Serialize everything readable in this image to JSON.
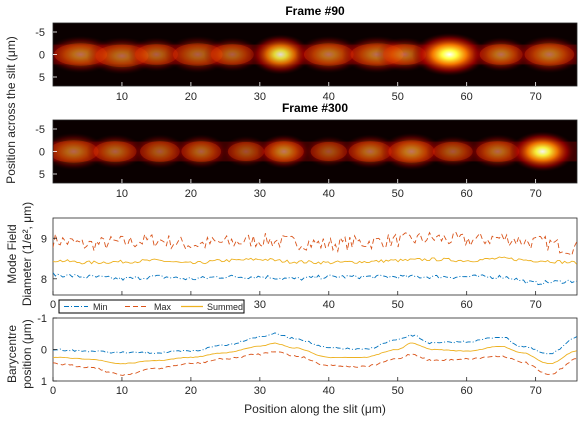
{
  "chart_data": [
    {
      "type": "heatmap",
      "title": "Frame #90",
      "x_ticks": [
        "10",
        "20",
        "30",
        "40",
        "50",
        "60",
        "70"
      ],
      "y_ticks": [
        "-5",
        "0",
        "5"
      ],
      "xlim": [
        0,
        76
      ],
      "ylim": [
        -7,
        7
      ],
      "colormap": "hot",
      "blobs": [
        {
          "x": 4,
          "y": 0,
          "w": 3.2,
          "h": 2.6,
          "intensity": 0.55
        },
        {
          "x": 10,
          "y": 0.3,
          "w": 3.2,
          "h": 2.6,
          "intensity": 0.5
        },
        {
          "x": 15,
          "y": 0,
          "w": 2.6,
          "h": 2.4,
          "intensity": 0.45
        },
        {
          "x": 21,
          "y": 0,
          "w": 3.0,
          "h": 2.6,
          "intensity": 0.45
        },
        {
          "x": 26,
          "y": 0,
          "w": 2.6,
          "h": 2.4,
          "intensity": 0.45
        },
        {
          "x": 33,
          "y": 0,
          "w": 2.8,
          "h": 2.8,
          "intensity": 0.85
        },
        {
          "x": 40,
          "y": 0,
          "w": 3.0,
          "h": 2.6,
          "intensity": 0.55
        },
        {
          "x": 47,
          "y": 0,
          "w": 3.2,
          "h": 2.6,
          "intensity": 0.55
        },
        {
          "x": 51,
          "y": 0,
          "w": 2.6,
          "h": 2.4,
          "intensity": 0.5
        },
        {
          "x": 57.5,
          "y": 0,
          "w": 3.4,
          "h": 3.0,
          "intensity": 1.0
        },
        {
          "x": 65,
          "y": 0,
          "w": 2.6,
          "h": 2.4,
          "intensity": 0.55
        },
        {
          "x": 72,
          "y": 0,
          "w": 3.0,
          "h": 2.6,
          "intensity": 0.55
        }
      ]
    },
    {
      "type": "heatmap",
      "title": "Frame #300",
      "x_ticks": [
        "10",
        "20",
        "30",
        "40",
        "50",
        "60",
        "70"
      ],
      "y_ticks": [
        "-5",
        "0",
        "5"
      ],
      "xlim": [
        0,
        76
      ],
      "ylim": [
        -7,
        7
      ],
      "colormap": "hot",
      "blobs": [
        {
          "x": 3,
          "y": 0,
          "w": 3.0,
          "h": 2.6,
          "intensity": 0.5
        },
        {
          "x": 9,
          "y": 0,
          "w": 2.6,
          "h": 2.4,
          "intensity": 0.45
        },
        {
          "x": 15.5,
          "y": 0,
          "w": 2.4,
          "h": 2.4,
          "intensity": 0.4
        },
        {
          "x": 21.5,
          "y": 0,
          "w": 2.4,
          "h": 2.4,
          "intensity": 0.45
        },
        {
          "x": 28,
          "y": 0,
          "w": 2.2,
          "h": 2.2,
          "intensity": 0.35
        },
        {
          "x": 33.5,
          "y": 0,
          "w": 2.4,
          "h": 2.4,
          "intensity": 0.6
        },
        {
          "x": 40,
          "y": 0,
          "w": 2.2,
          "h": 2.2,
          "intensity": 0.35
        },
        {
          "x": 46,
          "y": 0,
          "w": 2.6,
          "h": 2.4,
          "intensity": 0.5
        },
        {
          "x": 52,
          "y": 0,
          "w": 2.8,
          "h": 2.6,
          "intensity": 0.6
        },
        {
          "x": 58,
          "y": 0,
          "w": 2.4,
          "h": 2.2,
          "intensity": 0.4
        },
        {
          "x": 64.5,
          "y": 0,
          "w": 2.6,
          "h": 2.4,
          "intensity": 0.5
        },
        {
          "x": 71,
          "y": 0,
          "w": 3.0,
          "h": 2.8,
          "intensity": 0.95
        }
      ]
    },
    {
      "type": "line",
      "ylabel": "Mode Field Diameter (1/e², μm)",
      "x_ticks": [
        "0",
        "10",
        "20",
        "30",
        "40",
        "50",
        "60",
        "70"
      ],
      "y_ticks": [
        "8",
        "9"
      ],
      "xlim": [
        0,
        76
      ],
      "ylim": [
        7.6,
        9.5
      ],
      "grid": false,
      "legend": {
        "position": "below",
        "entries": [
          "Min",
          "Max",
          "Summed"
        ]
      },
      "series": [
        {
          "name": "Max",
          "color": "#d95319",
          "style": "dashed",
          "noise": 0.18,
          "x": [
            0,
            5,
            10,
            15,
            20,
            25,
            30,
            35,
            40,
            45,
            50,
            55,
            60,
            65,
            70,
            76
          ],
          "y": [
            8.95,
            8.85,
            8.9,
            8.95,
            8.85,
            8.9,
            8.95,
            8.9,
            8.85,
            8.9,
            8.95,
            9.0,
            8.95,
            9.0,
            8.9,
            8.75
          ]
        },
        {
          "name": "Summed",
          "color": "#edb120",
          "style": "solid",
          "noise": 0.04,
          "x": [
            0,
            5,
            10,
            15,
            20,
            25,
            30,
            35,
            40,
            45,
            50,
            55,
            60,
            65,
            70,
            76
          ],
          "y": [
            8.45,
            8.4,
            8.42,
            8.45,
            8.38,
            8.45,
            8.48,
            8.42,
            8.4,
            8.42,
            8.45,
            8.48,
            8.45,
            8.5,
            8.45,
            8.4
          ]
        },
        {
          "name": "Min",
          "color": "#0072bd",
          "style": "dashdot",
          "noise": 0.05,
          "x": [
            0,
            5,
            10,
            15,
            20,
            25,
            30,
            35,
            40,
            45,
            50,
            55,
            60,
            65,
            70,
            76
          ],
          "y": [
            8.1,
            8.05,
            8.0,
            8.05,
            8.0,
            8.05,
            8.05,
            8.0,
            8.05,
            8.05,
            8.05,
            8.05,
            8.05,
            8.05,
            7.9,
            7.95
          ]
        }
      ]
    },
    {
      "type": "line",
      "ylabel": "Barycentre position (μm)",
      "xlabel": "Position along the slit (μm)",
      "x_ticks": [
        "0",
        "10",
        "20",
        "30",
        "40",
        "50",
        "60",
        "70"
      ],
      "y_ticks": [
        "-1",
        "0",
        "1"
      ],
      "xlim": [
        0,
        76
      ],
      "ylim": [
        -1,
        1
      ],
      "y_reversed": true,
      "grid": false,
      "series": [
        {
          "name": "Min",
          "color": "#0072bd",
          "style": "dashdot",
          "noise": 0.03,
          "x": [
            0,
            5,
            10,
            15,
            20,
            25,
            30,
            32,
            35,
            40,
            45,
            50,
            52,
            55,
            60,
            65,
            68,
            72,
            76
          ],
          "y": [
            0.0,
            0.05,
            0.1,
            0.1,
            0.05,
            -0.15,
            -0.4,
            -0.5,
            -0.35,
            -0.05,
            0.0,
            -0.3,
            -0.45,
            -0.2,
            -0.25,
            -0.4,
            -0.1,
            0.15,
            -0.4
          ]
        },
        {
          "name": "Summed",
          "color": "#edb120",
          "style": "solid",
          "noise": 0.01,
          "x": [
            0,
            5,
            10,
            15,
            20,
            25,
            30,
            32,
            35,
            40,
            45,
            50,
            52,
            55,
            60,
            65,
            68,
            72,
            76
          ],
          "y": [
            0.25,
            0.3,
            0.45,
            0.35,
            0.25,
            0.1,
            -0.1,
            -0.2,
            -0.05,
            0.25,
            0.25,
            0.0,
            -0.2,
            0.0,
            0.05,
            -0.1,
            0.1,
            0.45,
            0.05
          ]
        },
        {
          "name": "Max",
          "color": "#d95319",
          "style": "dashed",
          "noise": 0.03,
          "x": [
            0,
            5,
            10,
            15,
            20,
            25,
            30,
            32,
            35,
            40,
            45,
            50,
            52,
            55,
            60,
            65,
            68,
            72,
            76
          ],
          "y": [
            0.45,
            0.55,
            0.8,
            0.6,
            0.45,
            0.3,
            0.15,
            0.05,
            0.2,
            0.5,
            0.55,
            0.3,
            0.15,
            0.35,
            0.3,
            0.2,
            0.4,
            0.8,
            0.3
          ]
        }
      ]
    }
  ],
  "labels": {
    "title_top": "Frame #90",
    "title_mid": "Frame #300",
    "ylabel_heat": "Position across the slit (μm)",
    "ylabel_mfd_1": "Mode Field",
    "ylabel_mfd_2": "Diameter (1/e², μm)",
    "ylabel_bary_1": "Barycentre",
    "ylabel_bary_2": "position (μm)",
    "xlabel": "Position along the slit (μm)",
    "legend_min": "Min",
    "legend_max": "Max",
    "legend_summed": "Summed"
  }
}
